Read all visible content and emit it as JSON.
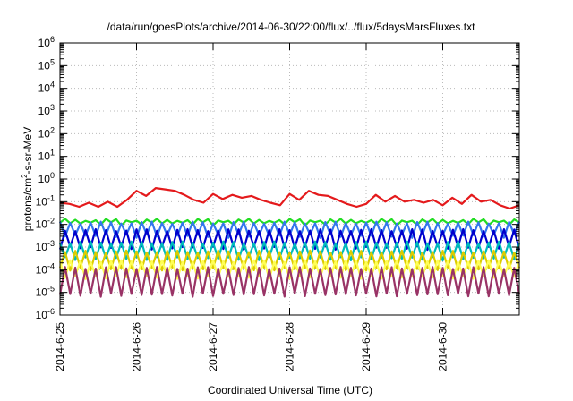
{
  "chart_data": {
    "type": "line",
    "title": "/data/run/goesPlots/archive/2014-06-30/22:00/flux/../flux/5daysMarsFluxes.txt",
    "xlabel": "Coordinated Universal Time (UTC)",
    "ylabel": {
      "base": "protons/cm",
      "sup": "2",
      "rest": "-s-sr-MeV"
    },
    "x_range": [
      "2014-06-25",
      "2014-07-01"
    ],
    "x_ticks": [
      "2014-6-25",
      "2014-6-26",
      "2014-6-27",
      "2014-6-28",
      "2014-6-29",
      "2014-6-30"
    ],
    "y_scale": "log",
    "ylim": [
      1e-06,
      1000000.0
    ],
    "y_ticks": [
      {
        "value": 1e-06,
        "base": "10",
        "exp": "-6"
      },
      {
        "value": 1e-05,
        "base": "10",
        "exp": "-5"
      },
      {
        "value": 0.0001,
        "base": "10",
        "exp": "-4"
      },
      {
        "value": 0.001,
        "base": "10",
        "exp": "-3"
      },
      {
        "value": 0.01,
        "base": "10",
        "exp": "-2"
      },
      {
        "value": 0.1,
        "base": "10",
        "exp": "-1"
      },
      {
        "value": 1.0,
        "base": "10",
        "exp": "0"
      },
      {
        "value": 10.0,
        "base": "10",
        "exp": "1"
      },
      {
        "value": 100.0,
        "base": "10",
        "exp": "2"
      },
      {
        "value": 1000.0,
        "base": "10",
        "exp": "3"
      },
      {
        "value": 10000.0,
        "base": "10",
        "exp": "4"
      },
      {
        "value": 100000.0,
        "base": "10",
        "exp": "5"
      },
      {
        "value": 1000000.0,
        "base": "10",
        "exp": "6"
      }
    ],
    "grid": true,
    "legend": "none",
    "series": [
      {
        "color": "#e41a1c",
        "x": [
          "2014-06-25 00:00",
          "2014-06-25 03:00",
          "2014-06-25 06:00",
          "2014-06-25 09:00",
          "2014-06-25 12:00",
          "2014-06-25 15:00",
          "2014-06-25 18:00",
          "2014-06-25 21:00",
          "2014-06-26 00:00",
          "2014-06-26 03:00",
          "2014-06-26 06:00",
          "2014-06-26 09:00",
          "2014-06-26 12:00",
          "2014-06-26 15:00",
          "2014-06-26 18:00",
          "2014-06-26 21:00",
          "2014-06-27 00:00",
          "2014-06-27 03:00",
          "2014-06-27 06:00",
          "2014-06-27 09:00",
          "2014-06-27 12:00",
          "2014-06-27 15:00",
          "2014-06-27 18:00",
          "2014-06-27 21:00",
          "2014-06-28 00:00",
          "2014-06-28 03:00",
          "2014-06-28 06:00",
          "2014-06-28 09:00",
          "2014-06-28 12:00",
          "2014-06-28 15:00",
          "2014-06-28 18:00",
          "2014-06-28 21:00",
          "2014-06-29 00:00",
          "2014-06-29 03:00",
          "2014-06-29 06:00",
          "2014-06-29 09:00",
          "2014-06-29 12:00",
          "2014-06-29 15:00",
          "2014-06-29 18:00",
          "2014-06-29 21:00",
          "2014-06-30 00:00",
          "2014-06-30 03:00",
          "2014-06-30 06:00",
          "2014-06-30 09:00",
          "2014-06-30 12:00",
          "2014-06-30 15:00",
          "2014-06-30 18:00",
          "2014-06-30 21:00",
          "2014-07-01 00:00"
        ],
        "y": [
          0.09,
          0.08,
          0.06,
          0.09,
          0.06,
          0.1,
          0.06,
          0.12,
          0.3,
          0.18,
          0.4,
          0.35,
          0.3,
          0.2,
          0.12,
          0.09,
          0.22,
          0.13,
          0.2,
          0.15,
          0.18,
          0.12,
          0.09,
          0.07,
          0.22,
          0.12,
          0.3,
          0.2,
          0.18,
          0.12,
          0.08,
          0.06,
          0.08,
          0.2,
          0.1,
          0.18,
          0.1,
          0.12,
          0.09,
          0.12,
          0.07,
          0.15,
          0.08,
          0.2,
          0.1,
          0.12,
          0.07,
          0.05,
          0.07
        ]
      },
      {
        "color": "#22dd22",
        "values_range": [
          0.007,
          0.02
        ]
      },
      {
        "color": "#3377ee",
        "values_range": [
          0.002,
          0.015
        ]
      },
      {
        "color": "#0000cc",
        "values_range": [
          0.0006,
          0.007
        ]
      },
      {
        "color": "#00bbbb",
        "values_range": [
          0.0002,
          0.002
        ]
      },
      {
        "color": "#ddcc00",
        "values_range": [
          7e-05,
          0.0008
        ]
      },
      {
        "color": "#ffff55",
        "values_range": [
          3e-05,
          0.0003
        ]
      },
      {
        "color": "#993366",
        "values_range": [
          5e-06,
          0.00015
        ]
      }
    ]
  }
}
